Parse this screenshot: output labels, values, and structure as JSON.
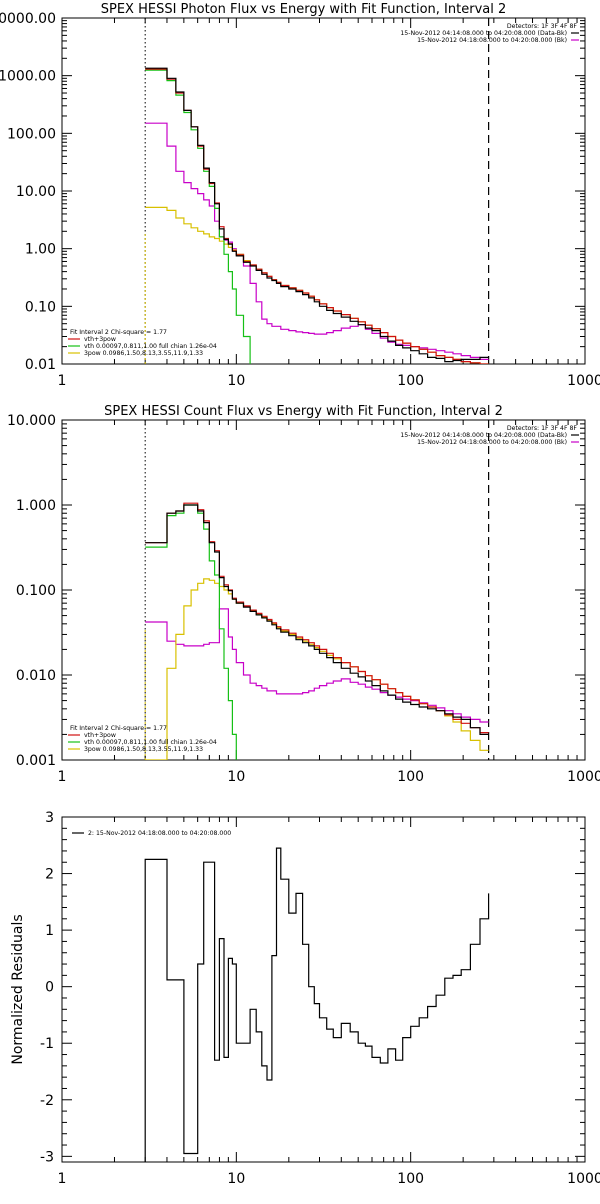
{
  "chart_data": [
    {
      "type": "line",
      "title": "SPEX HESSI Photon Flux vs Energy with Fit Function, Interval 2",
      "xscale": "log",
      "yscale": "log",
      "xlim": [
        1,
        1000
      ],
      "ylim": [
        0.01,
        10000
      ],
      "x_tick_labels": [
        "1",
        "10",
        "100",
        "1000"
      ],
      "y_tick_labels": [
        "0.01",
        "0.10",
        "1.00",
        "10.00",
        "100.00",
        "1000.00",
        "0000.00"
      ],
      "legend_top": [
        "Detectors: 1F 3F 4F 8F",
        "15-Nov-2012 04:14:08.000 to 04:20:08.000 (Data-Bk)",
        "15-Nov-2012 04:18:08.000 to 04:20:08.000 (Bk)"
      ],
      "legend_bottom": [
        "Fit Interval  2    Chi-square = 1.77",
        "vth+3pow",
        "vth 0.00097,0.811,1.00   full chian 1.26e-04",
        "3pow 0.0986,1.50,8.13,3.55,11.9,1.33"
      ],
      "markers": {
        "dotted_x": 3,
        "dashed_x": 280
      },
      "colors": {
        "data": "#000000",
        "total": "#d01010",
        "thermal": "#16c016",
        "power": "#d8c000",
        "background": "#c800c8"
      },
      "edges": [
        3,
        3.5,
        4,
        4.5,
        5,
        5.5,
        6,
        6.5,
        7,
        7.5,
        8,
        8.5,
        9,
        9.5,
        10,
        11,
        12,
        13,
        14,
        15,
        16,
        17,
        18,
        20,
        22,
        24,
        26,
        28,
        30,
        33,
        36,
        40,
        45,
        50,
        55,
        60,
        67,
        74,
        82,
        90,
        100,
        112,
        125,
        140,
        157,
        175,
        195,
        220,
        250,
        280
      ],
      "series": [
        {
          "role": "data",
          "values": [
            1350,
            1350,
            900,
            520,
            250,
            130,
            62,
            25,
            14,
            6,
            2.2,
            1.45,
            1.2,
            0.9,
            0.75,
            0.58,
            0.5,
            0.42,
            0.36,
            0.31,
            0.28,
            0.25,
            0.22,
            0.2,
            0.18,
            0.16,
            0.14,
            0.12,
            0.1,
            0.085,
            0.075,
            0.065,
            0.055,
            0.048,
            0.042,
            0.038,
            0.03,
            0.025,
            0.021,
            0.019,
            0.017,
            0.015,
            0.013,
            0.0125,
            0.011,
            0.0115,
            0.012,
            0.012,
            0.013
          ]
        },
        {
          "role": "total",
          "values": [
            1300,
            1300,
            870,
            500,
            250,
            130,
            60,
            24,
            13.5,
            6.2,
            2.4,
            1.5,
            1.22,
            0.92,
            0.78,
            0.6,
            0.52,
            0.44,
            0.38,
            0.33,
            0.29,
            0.26,
            0.23,
            0.21,
            0.19,
            0.17,
            0.15,
            0.13,
            0.11,
            0.095,
            0.083,
            0.072,
            0.062,
            0.054,
            0.047,
            0.041,
            0.035,
            0.03,
            0.026,
            0.023,
            0.02,
            0.018,
            0.016,
            0.014,
            0.013,
            0.012,
            0.011,
            0.0105,
            0.01
          ]
        },
        {
          "role": "thermal",
          "values": [
            1250,
            1250,
            820,
            460,
            230,
            115,
            55,
            22,
            12,
            5,
            1.6,
            0.8,
            0.4,
            0.2,
            0.07,
            0.03,
            0.008
          ]
        },
        {
          "role": "power",
          "values": [
            5.2,
            5.2,
            4.6,
            3.4,
            2.7,
            2.3,
            2.0,
            1.8,
            1.6,
            1.5,
            1.35,
            1.2,
            1.05,
            0.95,
            0.8,
            0.62,
            0.52,
            0.44,
            0.38,
            0.33,
            0.29,
            0.26,
            0.23,
            0.21,
            0.19,
            0.17,
            0.15,
            0.13,
            0.11,
            0.095,
            0.083,
            0.072,
            0.062,
            0.054,
            0.047,
            0.041,
            0.035,
            0.03,
            0.026,
            0.023,
            0.02,
            0.018,
            0.016,
            0.014,
            0.013,
            0.012,
            0.011,
            0.0105,
            0.01
          ]
        },
        {
          "role": "background",
          "values": [
            150,
            150,
            60,
            22,
            14,
            11,
            9,
            7,
            5.5,
            3,
            1.6,
            1.4,
            1.3,
            1.0,
            0.8,
            0.5,
            0.25,
            0.12,
            0.06,
            0.05,
            0.045,
            0.045,
            0.04,
            0.038,
            0.036,
            0.035,
            0.034,
            0.033,
            0.033,
            0.035,
            0.038,
            0.042,
            0.045,
            0.048,
            0.04,
            0.034,
            0.028,
            0.024,
            0.022,
            0.021,
            0.02,
            0.019,
            0.018,
            0.017,
            0.016,
            0.015,
            0.014,
            0.013,
            0.012
          ]
        }
      ]
    },
    {
      "type": "line",
      "title": "SPEX HESSI Count Flux vs Energy with Fit Function, Interval 2",
      "xscale": "log",
      "yscale": "log",
      "xlim": [
        1,
        1000
      ],
      "ylim": [
        0.001,
        10
      ],
      "x_tick_labels": [
        "1",
        "10",
        "100",
        "1000"
      ],
      "y_tick_labels": [
        "0.001",
        "0.010",
        "0.100",
        "1.000",
        "10.000"
      ],
      "legend_top": [
        "Detectors: 1F 3F 4F 8F",
        "15-Nov-2012 04:14:08.000 to 04:20:08.000 (Data-Bk)",
        "15-Nov-2012 04:18:08.000 to 04:20:08.000 (Bk)"
      ],
      "legend_bottom": [
        "Fit Interval  2    Chi-square = 1.77",
        "vth+3pow",
        "vth 0.00097,0.811,1.00   full chian 1.26e-04",
        "3pow 0.0986,1.50,8.13,3.55,11.9,1.33"
      ],
      "markers": {
        "dotted_x": 3,
        "dashed_x": 280
      },
      "colors": {
        "data": "#000000",
        "total": "#d01010",
        "thermal": "#16c016",
        "power": "#d8c000",
        "background": "#c800c8"
      },
      "edges": [
        3,
        3.5,
        4,
        4.5,
        5,
        5.5,
        6,
        6.5,
        7,
        7.5,
        8,
        8.5,
        9,
        9.5,
        10,
        11,
        12,
        13,
        14,
        15,
        16,
        17,
        18,
        20,
        22,
        24,
        26,
        28,
        30,
        33,
        36,
        40,
        45,
        50,
        55,
        60,
        67,
        74,
        82,
        90,
        100,
        112,
        125,
        140,
        157,
        175,
        195,
        220,
        250,
        280
      ],
      "series": [
        {
          "role": "data",
          "values": [
            0.36,
            0.36,
            0.8,
            0.85,
            1.0,
            1.0,
            0.85,
            0.62,
            0.36,
            0.28,
            0.14,
            0.11,
            0.098,
            0.078,
            0.07,
            0.063,
            0.056,
            0.051,
            0.047,
            0.043,
            0.039,
            0.035,
            0.032,
            0.029,
            0.026,
            0.024,
            0.022,
            0.02,
            0.018,
            0.016,
            0.014,
            0.012,
            0.0105,
            0.0095,
            0.0085,
            0.0075,
            0.0065,
            0.0058,
            0.0052,
            0.0048,
            0.0045,
            0.0042,
            0.004,
            0.0038,
            0.0035,
            0.0032,
            0.003,
            0.0024,
            0.002
          ]
        },
        {
          "role": "total",
          "values": [
            0.36,
            0.36,
            0.8,
            0.85,
            1.05,
            1.05,
            0.88,
            0.65,
            0.37,
            0.29,
            0.145,
            0.115,
            0.1,
            0.08,
            0.072,
            0.065,
            0.058,
            0.053,
            0.049,
            0.045,
            0.041,
            0.037,
            0.034,
            0.031,
            0.028,
            0.026,
            0.024,
            0.022,
            0.02,
            0.018,
            0.016,
            0.014,
            0.0125,
            0.011,
            0.0098,
            0.0088,
            0.0078,
            0.0069,
            0.0062,
            0.0056,
            0.0051,
            0.0046,
            0.0042,
            0.0038,
            0.0034,
            0.003,
            0.0027,
            0.0024,
            0.0021
          ]
        },
        {
          "role": "thermal",
          "values": [
            0.32,
            0.32,
            0.75,
            0.8,
            1.0,
            1.0,
            0.8,
            0.52,
            0.22,
            0.15,
            0.035,
            0.012,
            0.005,
            0.002,
            0.0008
          ]
        },
        {
          "role": "power",
          "values": [
            0.001,
            0.001,
            0.012,
            0.03,
            0.065,
            0.1,
            0.12,
            0.135,
            0.13,
            0.12,
            0.11,
            0.1,
            0.09,
            0.078,
            0.07,
            0.064,
            0.057,
            0.052,
            0.048,
            0.044,
            0.04,
            0.036,
            0.033,
            0.03,
            0.027,
            0.025,
            0.023,
            0.021,
            0.019,
            0.017,
            0.0155,
            0.014,
            0.0125,
            0.011,
            0.0098,
            0.0088,
            0.0078,
            0.0069,
            0.0062,
            0.0056,
            0.0051,
            0.0046,
            0.0042,
            0.0038,
            0.0033,
            0.0028,
            0.0022,
            0.0017,
            0.0013
          ]
        },
        {
          "role": "background",
          "values": [
            0.042,
            0.042,
            0.025,
            0.023,
            0.022,
            0.022,
            0.022,
            0.023,
            0.024,
            0.024,
            0.06,
            0.06,
            0.028,
            0.02,
            0.014,
            0.01,
            0.008,
            0.0075,
            0.007,
            0.0065,
            0.0065,
            0.006,
            0.006,
            0.006,
            0.006,
            0.0062,
            0.0065,
            0.007,
            0.0075,
            0.008,
            0.0085,
            0.009,
            0.0082,
            0.0078,
            0.0072,
            0.0068,
            0.0062,
            0.0058,
            0.0055,
            0.0052,
            0.005,
            0.0047,
            0.0044,
            0.0041,
            0.0038,
            0.0035,
            0.0032,
            0.003,
            0.0028
          ]
        }
      ]
    },
    {
      "type": "line",
      "ylabel": "Normalized Residuals",
      "xscale": "log",
      "yscale": "linear",
      "xlim": [
        1,
        1000
      ],
      "ylim": [
        -3.1,
        3
      ],
      "x_tick_labels": [
        "1",
        "10",
        "100",
        "1000"
      ],
      "y_tick_labels": [
        "-3",
        "-2",
        "-1",
        "0",
        "1",
        "2",
        "3"
      ],
      "legend": "2: 15-Nov-2012 04:18:08.000 to 04:20:08.000",
      "color": "#000000",
      "edges": [
        3,
        4,
        4.5,
        5,
        5.5,
        6,
        6.5,
        7,
        7.5,
        8,
        8.5,
        9,
        9.5,
        10,
        11,
        12,
        13,
        14,
        15,
        16,
        17,
        18,
        20,
        22,
        24,
        26,
        28,
        30,
        33,
        36,
        40,
        45,
        50,
        55,
        60,
        67,
        74,
        82,
        90,
        100,
        112,
        125,
        140,
        157,
        175,
        195,
        220,
        250,
        280
      ],
      "values": [
        2.25,
        0.12,
        0.12,
        -2.95,
        -2.95,
        0.4,
        2.2,
        2.2,
        -1.3,
        0.85,
        -1.25,
        0.5,
        0.4,
        -1.0,
        -1.0,
        -0.4,
        -0.8,
        -1.4,
        -1.65,
        0.55,
        2.45,
        1.9,
        1.3,
        1.65,
        0.75,
        0.0,
        -0.3,
        -0.55,
        -0.75,
        -0.9,
        -0.65,
        -0.8,
        -1.0,
        -1.05,
        -1.25,
        -1.35,
        -1.1,
        -1.3,
        -0.9,
        -0.7,
        -0.55,
        -0.35,
        -0.15,
        0.15,
        0.2,
        0.3,
        0.75,
        1.2,
        1.65
      ]
    }
  ]
}
